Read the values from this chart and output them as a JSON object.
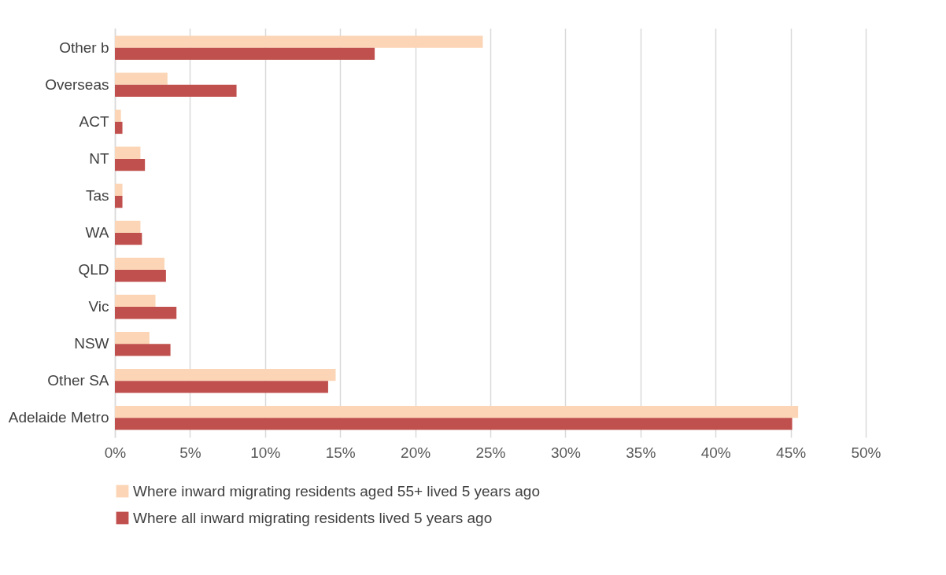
{
  "chart_data": {
    "type": "bar",
    "orientation": "horizontal",
    "categories": [
      "Other b",
      "Overseas",
      "ACT",
      "NT",
      "Tas",
      "WA",
      "QLD",
      "Vic",
      "NSW",
      "Other SA",
      "Adelaide Metro"
    ],
    "series": [
      {
        "name": "Where inward migrating residents aged 55+ lived 5 years ago",
        "color": "#fbd5b5",
        "values": [
          24.5,
          3.5,
          0.4,
          1.7,
          0.5,
          1.7,
          3.3,
          2.7,
          2.3,
          14.7,
          45.5
        ]
      },
      {
        "name": "Where all inward migrating residents lived 5 years ago",
        "color": "#c0504d",
        "values": [
          17.3,
          8.1,
          0.5,
          2.0,
          0.5,
          1.8,
          3.4,
          4.1,
          3.7,
          14.2,
          45.1
        ]
      }
    ],
    "xlim": [
      0,
      50
    ],
    "xticks": [
      {
        "value": 0,
        "label": "0%"
      },
      {
        "value": 5,
        "label": "5%"
      },
      {
        "value": 10,
        "label": "10%"
      },
      {
        "value": 15,
        "label": "15%"
      },
      {
        "value": 20,
        "label": "20%"
      },
      {
        "value": 25,
        "label": "25%"
      },
      {
        "value": 30,
        "label": "30%"
      },
      {
        "value": 35,
        "label": "35%"
      },
      {
        "value": 40,
        "label": "40%"
      },
      {
        "value": 45,
        "label": "45%"
      },
      {
        "value": 50,
        "label": "50%"
      }
    ],
    "grid": "x",
    "legend": "bottom"
  }
}
